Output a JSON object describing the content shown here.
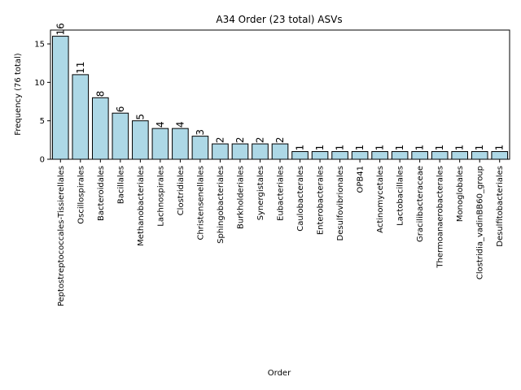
{
  "chart_data": {
    "type": "bar",
    "title": "A34 Order (23 total) ASVs",
    "xlabel": "Order",
    "ylabel": "Frequency (76 total)",
    "ylim": [
      0,
      16.8
    ],
    "yticks": [
      0,
      5,
      10,
      15
    ],
    "categories": [
      "Peptostreptococcales-Tissierellales",
      "Oscillospirales",
      "Bacteroidales",
      "Bacillales",
      "Methanobacteriales",
      "Lachnospirales",
      "Clostridiales",
      "Christensenellales",
      "Sphingobacteriales",
      "Burkholderiales",
      "Synergistales",
      "Eubacteriales",
      "Caulobacterales",
      "Enterobacterales",
      "Desulfovibrionales",
      "OPB41",
      "Actinomycetales",
      "Lactobacillales",
      "Gracilibacteraceae",
      "Thermoanaerobacterales",
      "Monoglobales",
      "Clostridia_vadinBB60_group",
      "Desulfitobacteriales"
    ],
    "values": [
      16,
      11,
      8,
      6,
      5,
      4,
      4,
      3,
      2,
      2,
      2,
      2,
      1,
      1,
      1,
      1,
      1,
      1,
      1,
      1,
      1,
      1,
      1
    ],
    "bar_color": "#add8e6",
    "edge_color": "#000000",
    "grid": false
  }
}
